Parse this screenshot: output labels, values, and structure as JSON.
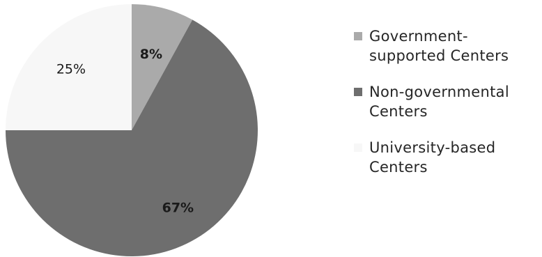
{
  "chart_data": {
    "type": "pie",
    "title": "",
    "slices": [
      {
        "label": "Government-\nsupported Centers",
        "value": 8,
        "display": "8%",
        "color": "#aaaaaa"
      },
      {
        "label": "Non-governmental\nCenters",
        "value": 67,
        "display": "67%",
        "color": "#6e6e6e"
      },
      {
        "label": "University-based\nCenters",
        "value": 25,
        "display": "25%",
        "color": "#f7f7f7"
      }
    ],
    "legend_position": "right"
  }
}
